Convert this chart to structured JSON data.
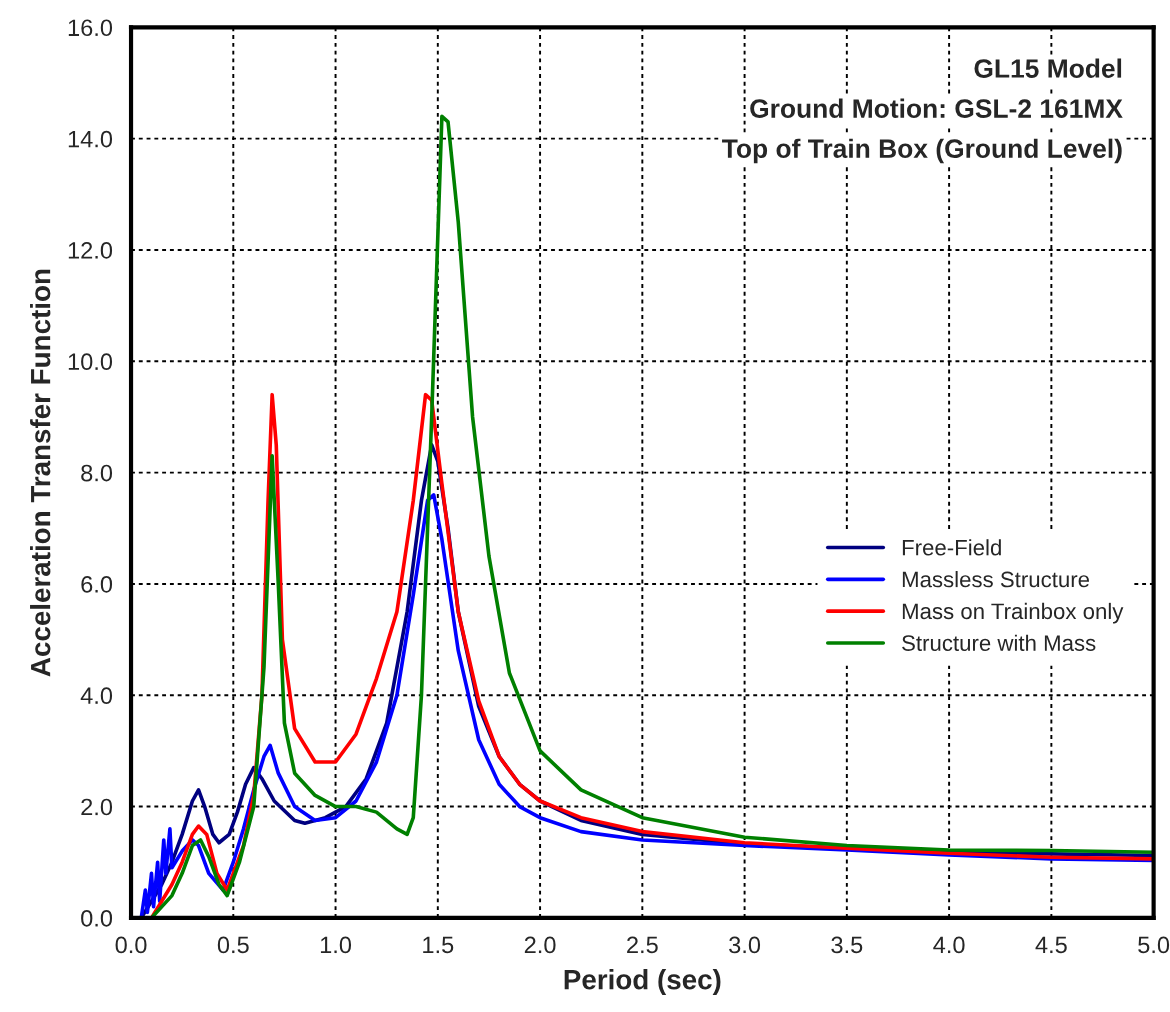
{
  "chart_data": {
    "type": "line",
    "annotations": [
      "GL15 Model",
      "Ground Motion: GSL-2 161MX",
      "Top of Train Box (Ground Level)"
    ],
    "xlabel": "Period (sec)",
    "ylabel": "Acceleration Transfer Function",
    "xlim": [
      0,
      5
    ],
    "ylim": [
      0,
      16
    ],
    "xticks": [
      {
        "value": 0,
        "label": "0.0"
      },
      {
        "value": 0.5,
        "label": "0.5"
      },
      {
        "value": 1,
        "label": "1.0"
      },
      {
        "value": 1.5,
        "label": "1.5"
      },
      {
        "value": 2,
        "label": "2.0"
      },
      {
        "value": 2.5,
        "label": "2.5"
      },
      {
        "value": 3,
        "label": "3.0"
      },
      {
        "value": 3.5,
        "label": "3.5"
      },
      {
        "value": 4,
        "label": "4.0"
      },
      {
        "value": 4.5,
        "label": "4.5"
      },
      {
        "value": 5,
        "label": "5.0"
      }
    ],
    "yticks": [
      {
        "value": 0,
        "label": "0.0"
      },
      {
        "value": 2,
        "label": "2.0"
      },
      {
        "value": 4,
        "label": "4.0"
      },
      {
        "value": 6,
        "label": "6.0"
      },
      {
        "value": 8,
        "label": "8.0"
      },
      {
        "value": 10,
        "label": "10.0"
      },
      {
        "value": 12,
        "label": "12.0"
      },
      {
        "value": 14,
        "label": "14.0"
      },
      {
        "value": 16,
        "label": "16.0"
      }
    ],
    "grid": true,
    "legend": "right",
    "marker": "none",
    "line_style": "solid",
    "series": [
      {
        "name": "Free-Field",
        "color": "#000080",
        "x": [
          0.05,
          0.1,
          0.15,
          0.2,
          0.25,
          0.3,
          0.33,
          0.36,
          0.4,
          0.43,
          0.48,
          0.52,
          0.56,
          0.6,
          0.64,
          0.7,
          0.8,
          0.85,
          0.95,
          1.05,
          1.15,
          1.25,
          1.35,
          1.42,
          1.47,
          1.5,
          1.55,
          1.6,
          1.7,
          1.8,
          1.9,
          2.0,
          2.2,
          2.5,
          3.0,
          3.5,
          4.0,
          4.5,
          5.0
        ],
        "values": [
          0,
          0.3,
          0.6,
          1.0,
          1.5,
          2.1,
          2.3,
          2.0,
          1.5,
          1.35,
          1.5,
          1.9,
          2.4,
          2.7,
          2.5,
          2.1,
          1.75,
          1.7,
          1.8,
          2.0,
          2.5,
          3.5,
          5.5,
          7.5,
          8.5,
          8.2,
          7.0,
          5.5,
          3.8,
          2.9,
          2.4,
          2.1,
          1.75,
          1.5,
          1.33,
          1.25,
          1.18,
          1.15,
          1.12
        ]
      },
      {
        "name": "Massless Structure",
        "color": "#0000ff",
        "x": [
          0.05,
          0.07,
          0.08,
          0.1,
          0.11,
          0.13,
          0.14,
          0.16,
          0.17,
          0.19,
          0.2,
          0.25,
          0.3,
          0.33,
          0.38,
          0.45,
          0.5,
          0.55,
          0.6,
          0.65,
          0.68,
          0.72,
          0.8,
          0.9,
          1.0,
          1.1,
          1.2,
          1.3,
          1.38,
          1.45,
          1.48,
          1.52,
          1.6,
          1.7,
          1.8,
          1.9,
          2.0,
          2.2,
          2.5,
          3.0,
          3.5,
          4.0,
          4.5,
          5.0
        ],
        "values": [
          0,
          0.5,
          0.1,
          0.8,
          0.2,
          1.0,
          0.3,
          1.4,
          0.8,
          1.6,
          0.9,
          1.2,
          1.4,
          1.3,
          0.8,
          0.5,
          1.0,
          1.6,
          2.3,
          2.9,
          3.1,
          2.6,
          2.0,
          1.75,
          1.8,
          2.1,
          2.8,
          4.0,
          5.8,
          7.5,
          7.6,
          6.8,
          4.8,
          3.2,
          2.4,
          2.0,
          1.8,
          1.55,
          1.4,
          1.3,
          1.22,
          1.13,
          1.06,
          1.03
        ]
      },
      {
        "name": "Mass on Trainbox only",
        "color": "#ff0000",
        "x": [
          0.1,
          0.15,
          0.2,
          0.25,
          0.3,
          0.33,
          0.37,
          0.42,
          0.47,
          0.55,
          0.6,
          0.64,
          0.67,
          0.69,
          0.71,
          0.74,
          0.8,
          0.9,
          1.0,
          1.1,
          1.2,
          1.3,
          1.38,
          1.44,
          1.47,
          1.52,
          1.6,
          1.7,
          1.8,
          1.9,
          2.0,
          2.2,
          2.5,
          3.0,
          3.5,
          4.0,
          4.5,
          5.0
        ],
        "values": [
          0,
          0.3,
          0.6,
          1.0,
          1.5,
          1.65,
          1.5,
          0.8,
          0.5,
          1.3,
          2.2,
          4.0,
          7.5,
          9.4,
          8.5,
          5.0,
          3.4,
          2.8,
          2.8,
          3.3,
          4.3,
          5.5,
          7.5,
          9.4,
          9.3,
          7.8,
          5.5,
          3.9,
          2.9,
          2.4,
          2.1,
          1.8,
          1.55,
          1.35,
          1.25,
          1.16,
          1.09,
          1.06
        ]
      },
      {
        "name": "Structure with Mass",
        "color": "#008000",
        "x": [
          0.1,
          0.2,
          0.25,
          0.3,
          0.34,
          0.38,
          0.43,
          0.47,
          0.53,
          0.6,
          0.65,
          0.69,
          0.72,
          0.75,
          0.8,
          0.9,
          1.0,
          1.1,
          1.2,
          1.3,
          1.35,
          1.38,
          1.42,
          1.47,
          1.52,
          1.55,
          1.6,
          1.67,
          1.75,
          1.85,
          2.0,
          2.2,
          2.5,
          3.0,
          3.5,
          4.0,
          4.5,
          5.0
        ],
        "values": [
          0,
          0.4,
          0.8,
          1.3,
          1.4,
          1.1,
          0.6,
          0.4,
          1.0,
          2.0,
          4.5,
          8.3,
          6.0,
          3.5,
          2.6,
          2.2,
          2.0,
          2.0,
          1.9,
          1.6,
          1.5,
          1.8,
          4.0,
          9.0,
          14.4,
          14.3,
          12.5,
          9.0,
          6.5,
          4.4,
          3.0,
          2.3,
          1.8,
          1.45,
          1.3,
          1.22,
          1.21,
          1.18
        ]
      }
    ]
  }
}
